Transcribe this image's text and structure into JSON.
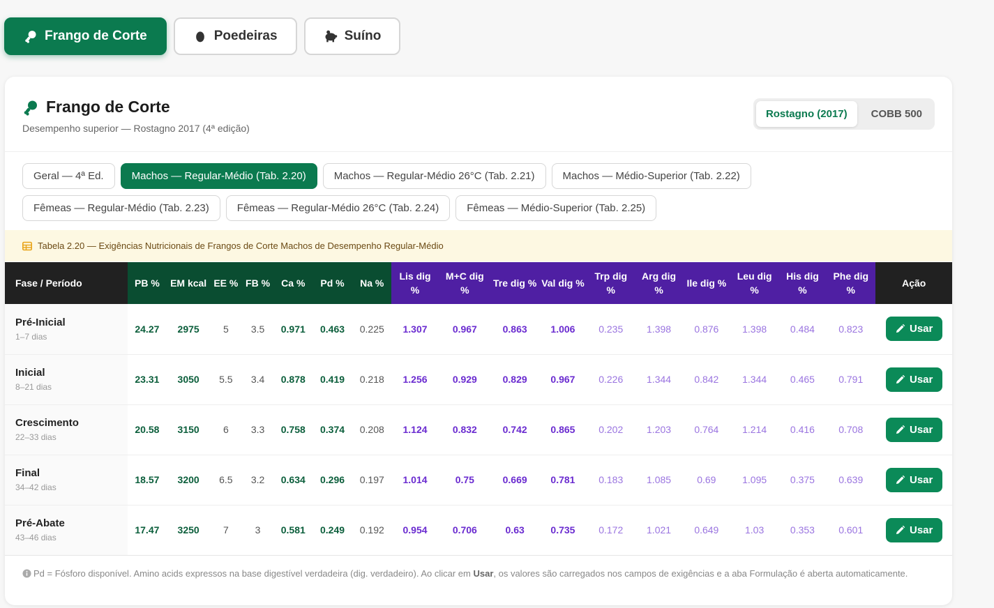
{
  "species_tabs": [
    {
      "label": "Frango de Corte",
      "icon": "drumstick-icon",
      "active": true
    },
    {
      "label": "Poedeiras",
      "icon": "egg-icon",
      "active": false
    },
    {
      "label": "Suíno",
      "icon": "piggy-icon",
      "active": false
    }
  ],
  "card": {
    "title": "Frango de Corte",
    "subtitle": "Desempenho superior — Rostagno 2017 (4ª edição)",
    "references": [
      {
        "label": "Rostagno (2017)",
        "active": true
      },
      {
        "label": "COBB 500",
        "active": false
      }
    ]
  },
  "table_chips": [
    {
      "label": "Geral — 4ª Ed.",
      "active": false
    },
    {
      "label": "Machos — Regular-Médio (Tab. 2.20)",
      "active": true
    },
    {
      "label": "Machos — Regular-Médio 26°C (Tab. 2.21)",
      "active": false
    },
    {
      "label": "Machos — Médio-Superior (Tab. 2.22)",
      "active": false
    },
    {
      "label": "Fêmeas — Regular-Médio (Tab. 2.23)",
      "active": false
    },
    {
      "label": "Fêmeas — Regular-Médio 26°C (Tab. 2.24)",
      "active": false
    },
    {
      "label": "Fêmeas — Médio-Superior (Tab. 2.25)",
      "active": false
    }
  ],
  "caption": "Tabela 2.20 — Exigências Nutricionais de Frangos de Corte Machos de Desempenho Regular-Médio",
  "table": {
    "phase_header": "Fase / Período",
    "action_header": "Ação",
    "columns": [
      {
        "label": "PB %",
        "group": "green",
        "style": "gb"
      },
      {
        "label": "EM kcal",
        "group": "green",
        "style": "gb"
      },
      {
        "label": "EE %",
        "group": "green",
        "style": "gray"
      },
      {
        "label": "FB %",
        "group": "green",
        "style": "gray"
      },
      {
        "label": "Ca %",
        "group": "green",
        "style": "gb"
      },
      {
        "label": "Pd %",
        "group": "green",
        "style": "gb"
      },
      {
        "label": "Na %",
        "group": "green",
        "style": "gray"
      },
      {
        "label": "Lis dig %",
        "group": "purple",
        "style": "pb"
      },
      {
        "label": "M+C dig %",
        "group": "purple",
        "style": "pb"
      },
      {
        "label": "Tre dig %",
        "group": "purple",
        "style": "pb"
      },
      {
        "label": "Val dig %",
        "group": "purple",
        "style": "pb"
      },
      {
        "label": "Trp dig %",
        "group": "purple",
        "style": "pl"
      },
      {
        "label": "Arg dig %",
        "group": "purple",
        "style": "pl"
      },
      {
        "label": "Ile dig %",
        "group": "purple",
        "style": "pl"
      },
      {
        "label": "Leu dig %",
        "group": "purple",
        "style": "pl"
      },
      {
        "label": "His dig %",
        "group": "purple",
        "style": "pl"
      },
      {
        "label": "Phe dig %",
        "group": "purple",
        "style": "pl"
      }
    ],
    "rows": [
      {
        "phase": "Pré-Inicial",
        "days": "1–7 dias",
        "values": [
          "24.27",
          "2975",
          "5",
          "3.5",
          "0.971",
          "0.463",
          "0.225",
          "1.307",
          "0.967",
          "0.863",
          "1.006",
          "0.235",
          "1.398",
          "0.876",
          "1.398",
          "0.484",
          "0.823"
        ],
        "action": "Usar"
      },
      {
        "phase": "Inicial",
        "days": "8–21 dias",
        "values": [
          "23.31",
          "3050",
          "5.5",
          "3.4",
          "0.878",
          "0.419",
          "0.218",
          "1.256",
          "0.929",
          "0.829",
          "0.967",
          "0.226",
          "1.344",
          "0.842",
          "1.344",
          "0.465",
          "0.791"
        ],
        "action": "Usar"
      },
      {
        "phase": "Crescimento",
        "days": "22–33 dias",
        "values": [
          "20.58",
          "3150",
          "6",
          "3.3",
          "0.758",
          "0.374",
          "0.208",
          "1.124",
          "0.832",
          "0.742",
          "0.865",
          "0.202",
          "1.203",
          "0.764",
          "1.214",
          "0.416",
          "0.708"
        ],
        "action": "Usar"
      },
      {
        "phase": "Final",
        "days": "34–42 dias",
        "values": [
          "18.57",
          "3200",
          "6.5",
          "3.2",
          "0.634",
          "0.296",
          "0.197",
          "1.014",
          "0.75",
          "0.669",
          "0.781",
          "0.183",
          "1.085",
          "0.69",
          "1.095",
          "0.375",
          "0.639"
        ],
        "action": "Usar"
      },
      {
        "phase": "Pré-Abate",
        "days": "43–46 dias",
        "values": [
          "17.47",
          "3250",
          "7",
          "3",
          "0.581",
          "0.249",
          "0.192",
          "0.954",
          "0.706",
          "0.63",
          "0.735",
          "0.172",
          "1.021",
          "0.649",
          "1.03",
          "0.353",
          "0.601"
        ],
        "action": "Usar"
      }
    ]
  },
  "footnote": {
    "before": "Pd = Fósforo disponível. Amino acids expressos na base digestível verdadeira (dig. verdadeiro). Ao clicar em ",
    "bold": "Usar",
    "after": ", os valores são carregados nos campos de exigências e a aba Formulação é aberta automaticamente."
  },
  "colors": {
    "brand_green": "#0b7a4f",
    "header_green": "#0a4d31",
    "header_purple": "#4f1fa3",
    "header_dark": "#212121",
    "caption_bg": "#fdf8e2"
  }
}
